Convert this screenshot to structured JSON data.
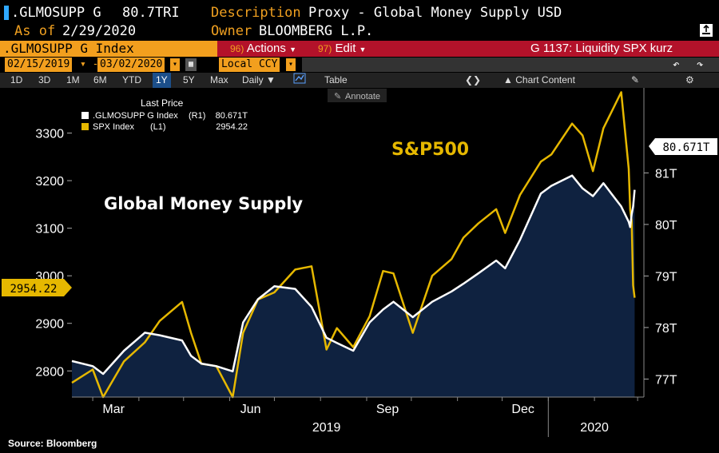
{
  "header": {
    "ticker": ".GLMOSUPP G",
    "last_value": "80.7TRI",
    "description_label": "Description",
    "description_value": "Proxy - Global Money Supply USD",
    "asof_label": "As of",
    "asof_value": "2/29/2020",
    "owner_label": "Owner",
    "owner_value": "BLOOMBERG L.P.",
    "export_icon": "export-icon"
  },
  "menu": {
    "security": ".GLMOSUPP G Index",
    "actions_num": "96)",
    "actions_label": "Actions",
    "edit_num": "97)",
    "edit_label": "Edit",
    "chart_name": "G 1137: Liquidity SPX kurz"
  },
  "controls": {
    "start_date": "02/15/2019",
    "end_date": "03/02/2020",
    "currency": "Local CCY",
    "undo_icon": "undo-icon",
    "redo_icon": "redo-icon"
  },
  "toolbar": {
    "periods": [
      "1D",
      "3D",
      "1M",
      "6M",
      "YTD",
      "1Y",
      "5Y",
      "Max"
    ],
    "selected_period": "1Y",
    "frequency": "Daily",
    "table_label": "Table",
    "chart_content_label": "Chart Content",
    "annotate_label": "Annotate"
  },
  "colors": {
    "spx": "#e6b800",
    "money": "#ffffff",
    "area": "#0f2240",
    "tag_amber": "#f29f1e",
    "menu_red": "#b3122a",
    "toolbar_blue": "#1c4f8a"
  },
  "chart_data": {
    "type": "line",
    "legend": {
      "title": "Last Price",
      "entries": [
        {
          "name": ".GLMOSUPP G Index",
          "axis": "(R1)",
          "value": "80.671T"
        },
        {
          "name": "SPX Index",
          "axis": "(L1)",
          "value": "2954.22"
        }
      ],
      "placement": "top-left"
    },
    "annotations": [
      "S&P500",
      "Global Money Supply"
    ],
    "left_axis": {
      "ticks": [
        "2800",
        "2900",
        "3000",
        "3100",
        "3200",
        "3300"
      ],
      "range": [
        2745,
        3395
      ],
      "last_tag": "2954.22"
    },
    "right_axis": {
      "ticks": [
        "77T",
        "78T",
        "79T",
        "80T",
        "81T"
      ],
      "range": [
        76.65,
        82.65
      ],
      "last_tag": "80.671T"
    },
    "x_ticks": [
      "Mar",
      "Jun",
      "Sep",
      "Dec"
    ],
    "year_labels": [
      "2019",
      "2020"
    ],
    "series": [
      {
        "name": "SPX Index",
        "axis": "left",
        "x": [
          "2019-02-15",
          "2019-03-01",
          "2019-03-08",
          "2019-03-22",
          "2019-04-05",
          "2019-04-15",
          "2019-04-30",
          "2019-05-06",
          "2019-05-13",
          "2019-05-23",
          "2019-06-03",
          "2019-06-10",
          "2019-06-20",
          "2019-07-01",
          "2019-07-15",
          "2019-07-26",
          "2019-08-05",
          "2019-08-12",
          "2019-08-23",
          "2019-09-03",
          "2019-09-12",
          "2019-09-19",
          "2019-10-02",
          "2019-10-15",
          "2019-10-28",
          "2019-11-05",
          "2019-11-15",
          "2019-11-27",
          "2019-12-03",
          "2019-12-13",
          "2019-12-27",
          "2020-01-03",
          "2020-01-17",
          "2020-01-24",
          "2020-01-31",
          "2020-02-07",
          "2020-02-19",
          "2020-02-24",
          "2020-02-25",
          "2020-02-26",
          "2020-02-27",
          "2020-02-28"
        ],
        "values": [
          2775,
          2803,
          2745,
          2820,
          2860,
          2905,
          2945,
          2880,
          2815,
          2810,
          2745,
          2880,
          2950,
          2965,
          3013,
          3020,
          2845,
          2890,
          2850,
          2915,
          3010,
          3005,
          2880,
          3000,
          3035,
          3080,
          3110,
          3140,
          3090,
          3170,
          3240,
          3255,
          3320,
          3295,
          3220,
          3310,
          3386,
          3225,
          3140,
          3115,
          2980,
          2954
        ]
      },
      {
        "name": ".GLMOSUPP G Index",
        "axis": "right",
        "x": [
          "2019-02-15",
          "2019-03-01",
          "2019-03-08",
          "2019-03-22",
          "2019-04-05",
          "2019-04-15",
          "2019-04-30",
          "2019-05-06",
          "2019-05-13",
          "2019-05-23",
          "2019-06-03",
          "2019-06-10",
          "2019-06-20",
          "2019-07-01",
          "2019-07-15",
          "2019-07-26",
          "2019-08-05",
          "2019-08-12",
          "2019-08-23",
          "2019-09-03",
          "2019-09-12",
          "2019-09-19",
          "2019-10-02",
          "2019-10-15",
          "2019-10-28",
          "2019-11-05",
          "2019-11-15",
          "2019-11-27",
          "2019-12-03",
          "2019-12-13",
          "2019-12-27",
          "2020-01-03",
          "2020-01-17",
          "2020-01-24",
          "2020-01-31",
          "2020-02-07",
          "2020-02-19",
          "2020-02-24",
          "2020-02-25",
          "2020-02-26",
          "2020-02-27",
          "2020-02-28"
        ],
        "values": [
          77.35,
          77.25,
          77.1,
          77.55,
          77.9,
          77.85,
          77.75,
          77.45,
          77.3,
          77.25,
          77.15,
          78.1,
          78.55,
          78.8,
          78.75,
          78.4,
          77.8,
          77.7,
          77.55,
          78.1,
          78.35,
          78.5,
          78.2,
          78.5,
          78.7,
          78.85,
          79.05,
          79.3,
          79.15,
          79.7,
          80.6,
          80.75,
          80.95,
          80.7,
          80.55,
          80.8,
          80.35,
          80.05,
          79.95,
          80.2,
          80.35,
          80.671
        ]
      }
    ]
  },
  "footer": {
    "source": "Source: Bloomberg"
  }
}
